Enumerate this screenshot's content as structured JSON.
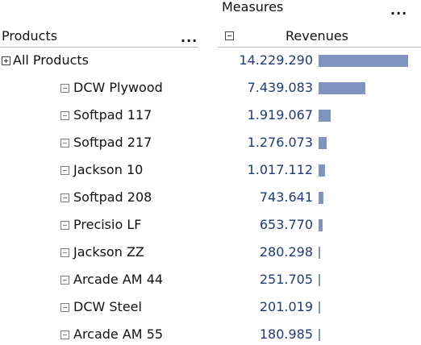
{
  "header": {
    "measures_label": "Measures",
    "measures_menu": "...",
    "products_label": "Products",
    "products_menu": "...",
    "revenues_label": "Revenues"
  },
  "bar_color": "#8094c2",
  "value_color": "#1f3a7a",
  "max_value": 14229290,
  "rows": [
    {
      "label": "All Products",
      "value": "14.229.290",
      "amount": 14229290,
      "icon": "expand-plus-icon"
    },
    {
      "label": "DCW Plywood",
      "value": "7.439.083",
      "amount": 7439083,
      "icon": "collapse-box-icon"
    },
    {
      "label": "Softpad 117",
      "value": "1.919.067",
      "amount": 1919067,
      "icon": "collapse-box-icon"
    },
    {
      "label": "Softpad 217",
      "value": "1.276.073",
      "amount": 1276073,
      "icon": "collapse-box-icon"
    },
    {
      "label": "Jackson 10",
      "value": "1.017.112",
      "amount": 1017112,
      "icon": "collapse-box-icon"
    },
    {
      "label": "Softpad 208",
      "value": "743.641",
      "amount": 743641,
      "icon": "collapse-box-icon"
    },
    {
      "label": "Precisio LF",
      "value": "653.770",
      "amount": 653770,
      "icon": "collapse-box-icon"
    },
    {
      "label": "Jackson ZZ",
      "value": "280.298",
      "amount": 280298,
      "icon": "collapse-box-icon"
    },
    {
      "label": "Arcade AM 44",
      "value": "251.705",
      "amount": 251705,
      "icon": "collapse-box-icon"
    },
    {
      "label": "DCW Steel",
      "value": "201.019",
      "amount": 201019,
      "icon": "collapse-box-icon"
    },
    {
      "label": "Arcade AM 55",
      "value": "180.985",
      "amount": 180985,
      "icon": "collapse-box-icon"
    }
  ]
}
